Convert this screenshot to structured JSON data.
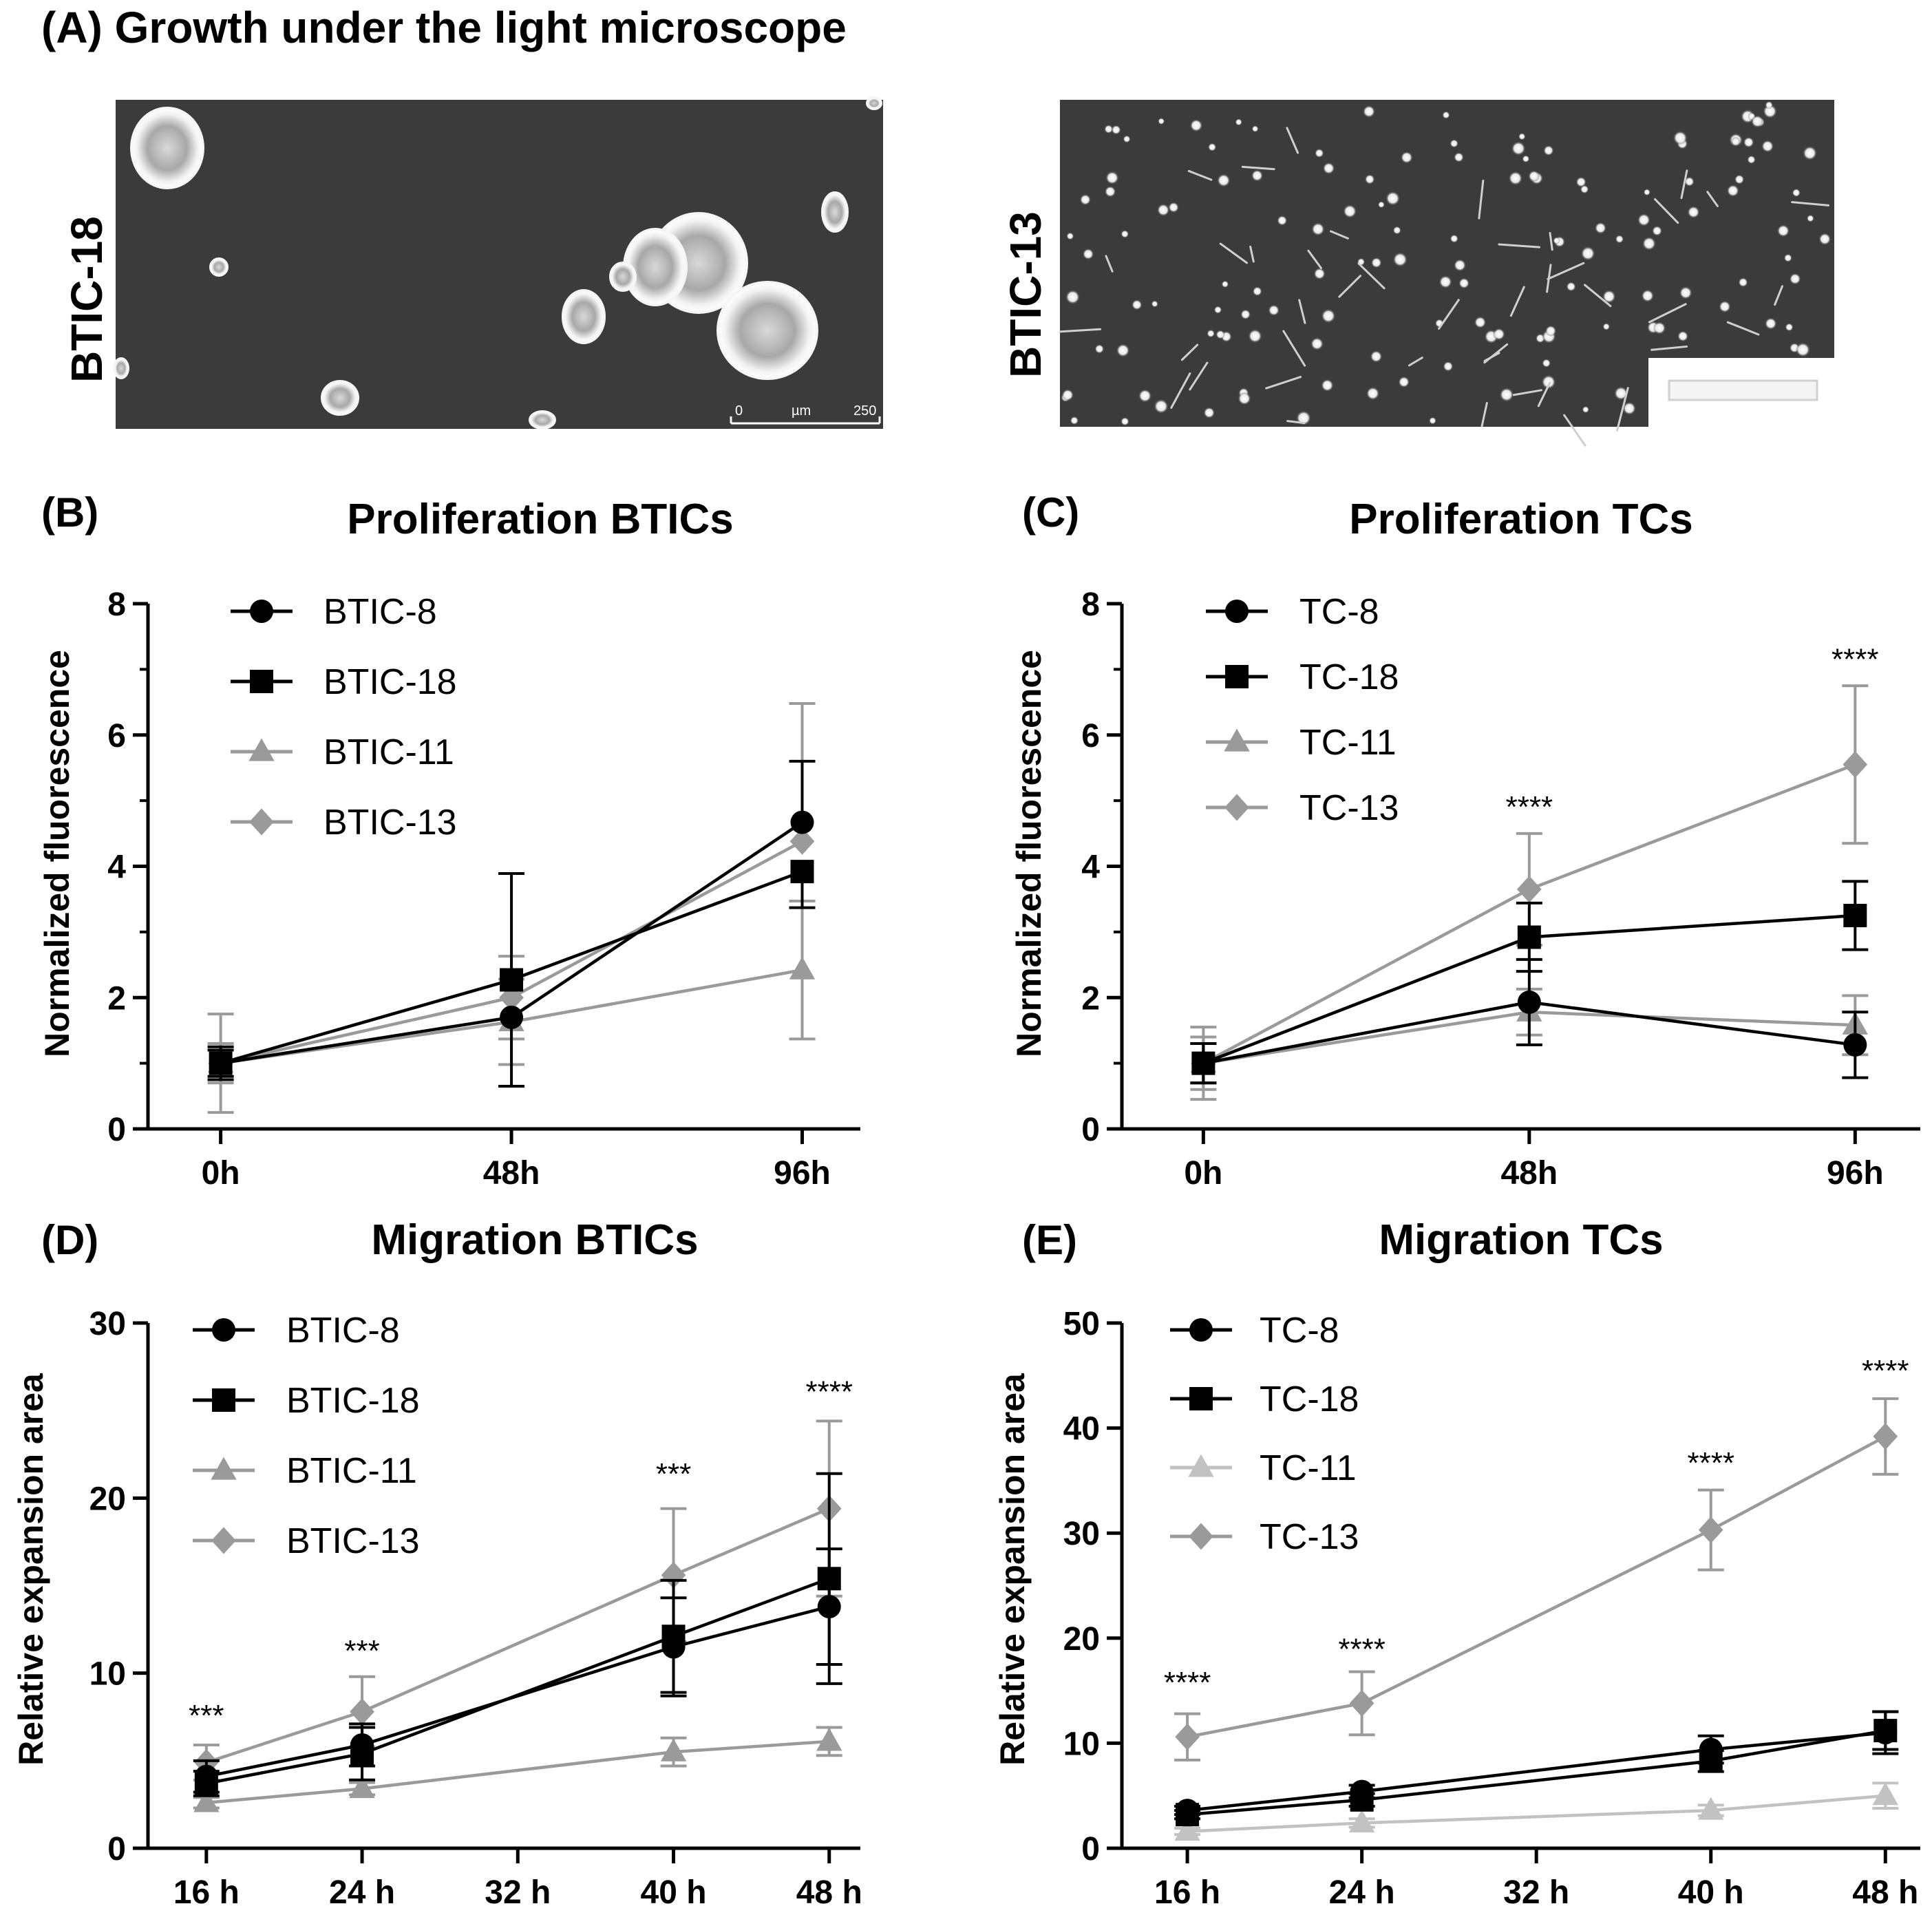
{
  "figure_title": "(A) Growth under  the light microscope",
  "panel_a": {
    "images": [
      {
        "label": "BTIC-18",
        "scalebar": {
          "start": "0",
          "unit": "µm",
          "end": "250"
        }
      },
      {
        "label": "BTIC-13"
      }
    ]
  },
  "colors": {
    "black": "#000000",
    "gray": "#9a9a9a",
    "light_gray": "#c2c2c2",
    "micro_bg": "#3b3b3b"
  },
  "chart_data": [
    {
      "id": "B",
      "panel_label": "(B)",
      "type": "line",
      "title": "Proliferation BTICs",
      "xlabel": "",
      "ylabel": "Normalized fluorescence",
      "x_is_categorical": true,
      "categories": [
        "0h",
        "48h",
        "96h"
      ],
      "xticks": [
        0,
        1,
        2
      ],
      "xlim": [
        -0.25,
        2.2
      ],
      "ylim": [
        0,
        8
      ],
      "yticks": [
        0,
        2,
        4,
        6,
        8
      ],
      "series": [
        {
          "name": "BTIC-8",
          "marker": "circle",
          "color": "#000000",
          "x": [
            0,
            1,
            2
          ],
          "values": [
            1.0,
            1.7,
            4.67
          ],
          "err": [
            0.25,
            1.05,
            0.93
          ],
          "err_dir": [
            "both",
            "down",
            "up"
          ]
        },
        {
          "name": "BTIC-18",
          "marker": "square",
          "color": "#000000",
          "x": [
            0,
            1,
            2
          ],
          "values": [
            1.0,
            2.27,
            3.92
          ],
          "err": [
            0.2,
            1.62,
            0.55
          ],
          "err_dir": [
            "both",
            "up",
            "down"
          ]
        },
        {
          "name": "BTIC-11",
          "marker": "triangle",
          "color": "#9a9a9a",
          "x": [
            0,
            1,
            2
          ],
          "values": [
            1.0,
            1.63,
            2.42
          ],
          "err": [
            0.3,
            0.65,
            1.05
          ],
          "err_dir": [
            "both",
            "both",
            "both"
          ]
        },
        {
          "name": "BTIC-13",
          "marker": "diamond",
          "color": "#9a9a9a",
          "x": [
            0,
            1,
            2
          ],
          "values": [
            1.0,
            2.0,
            4.38
          ],
          "err": [
            0.75,
            0.63,
            2.1
          ],
          "err_dir": [
            "both",
            "both",
            "up"
          ]
        }
      ],
      "annotations": []
    },
    {
      "id": "C",
      "panel_label": "(C)",
      "type": "line",
      "title": "Proliferation TCs",
      "xlabel": "",
      "ylabel": "Normalized fluorescence",
      "x_is_categorical": true,
      "categories": [
        "0h",
        "48h",
        "96h"
      ],
      "xticks": [
        0,
        1,
        2
      ],
      "xlim": [
        -0.25,
        2.2
      ],
      "ylim": [
        0,
        8
      ],
      "yticks": [
        0,
        2,
        4,
        6,
        8
      ],
      "series": [
        {
          "name": "TC-8",
          "marker": "circle",
          "color": "#000000",
          "x": [
            0,
            1,
            2
          ],
          "values": [
            1.0,
            1.93,
            1.28
          ],
          "err": [
            0.3,
            0.65,
            0.5
          ],
          "err_dir": [
            "both",
            "both",
            "both"
          ]
        },
        {
          "name": "TC-18",
          "marker": "square",
          "color": "#000000",
          "x": [
            0,
            1,
            2
          ],
          "values": [
            1.0,
            2.92,
            3.25
          ],
          "err": [
            0.3,
            0.52,
            0.52
          ],
          "err_dir": [
            "both",
            "both",
            "both"
          ]
        },
        {
          "name": "TC-11",
          "marker": "triangle",
          "color": "#9a9a9a",
          "x": [
            0,
            1,
            2
          ],
          "values": [
            1.0,
            1.78,
            1.58
          ],
          "err": [
            0.4,
            0.35,
            0.45
          ],
          "err_dir": [
            "both",
            "both",
            "both"
          ]
        },
        {
          "name": "TC-13",
          "marker": "diamond",
          "color": "#9a9a9a",
          "x": [
            0,
            1,
            2
          ],
          "values": [
            1.0,
            3.65,
            5.55
          ],
          "err": [
            0.55,
            0.85,
            1.2
          ],
          "err_dir": [
            "both",
            "both",
            "both"
          ]
        }
      ],
      "annotations": [
        {
          "text": "****",
          "x": 1,
          "y": 4.75
        },
        {
          "text": "****",
          "x": 2,
          "y": 7.0
        }
      ]
    },
    {
      "id": "D",
      "panel_label": "(D)",
      "type": "line",
      "title": "Migration BTICs",
      "xlabel": "",
      "ylabel": "Relative expansion area",
      "x_is_categorical": false,
      "x_ticklabels": [
        "16 h",
        "24 h",
        "32 h",
        "40 h",
        "48 h"
      ],
      "xticks": [
        16,
        24,
        32,
        40,
        48
      ],
      "xlim": [
        13,
        49.6
      ],
      "ylim": [
        0,
        30
      ],
      "yticks": [
        0,
        10,
        20,
        30
      ],
      "series": [
        {
          "name": "BTIC-8",
          "marker": "circle",
          "color": "#000000",
          "x": [
            16,
            24,
            40,
            48
          ],
          "values": [
            4.1,
            5.9,
            11.5,
            13.8
          ],
          "err": [
            0.9,
            1.2,
            2.8,
            3.3
          ],
          "err_dir": [
            "both",
            "both",
            "both",
            "both"
          ]
        },
        {
          "name": "BTIC-18",
          "marker": "square",
          "color": "#000000",
          "x": [
            16,
            24,
            40,
            48
          ],
          "values": [
            3.7,
            5.4,
            12.1,
            15.4
          ],
          "err": [
            0.7,
            1.5,
            3.2,
            6.0
          ],
          "err_dir": [
            "both",
            "both",
            "both",
            "both"
          ]
        },
        {
          "name": "BTIC-11",
          "marker": "triangle",
          "color": "#9a9a9a",
          "x": [
            16,
            24,
            40,
            48
          ],
          "values": [
            2.6,
            3.4,
            5.5,
            6.1
          ],
          "err": [
            0.3,
            0.35,
            0.8,
            0.8
          ],
          "err_dir": [
            "both",
            "both",
            "both",
            "both"
          ]
        },
        {
          "name": "BTIC-13",
          "marker": "diamond",
          "color": "#9a9a9a",
          "x": [
            16,
            24,
            40,
            48
          ],
          "values": [
            4.9,
            7.8,
            15.6,
            19.4
          ],
          "err": [
            1.0,
            2.0,
            3.8,
            5.0
          ],
          "err_dir": [
            "both",
            "both",
            "both",
            "both"
          ]
        }
      ],
      "annotations": [
        {
          "text": "***",
          "x": 16,
          "y": 7.0
        },
        {
          "text": "***",
          "x": 24,
          "y": 10.7
        },
        {
          "text": "***",
          "x": 40,
          "y": 20.8
        },
        {
          "text": "****",
          "x": 48,
          "y": 25.5
        }
      ]
    },
    {
      "id": "E",
      "panel_label": "(E)",
      "type": "line",
      "title": "Migration TCs",
      "xlabel": "",
      "ylabel": "Relative expansion area",
      "x_is_categorical": false,
      "x_ticklabels": [
        "16 h",
        "24 h",
        "32 h",
        "40 h",
        "48 h"
      ],
      "xticks": [
        16,
        24,
        32,
        40,
        48
      ],
      "xlim": [
        13,
        49.6
      ],
      "ylim": [
        0,
        50
      ],
      "yticks": [
        0,
        10,
        20,
        30,
        40,
        50
      ],
      "series": [
        {
          "name": "TC-8",
          "marker": "circle",
          "color": "#000000",
          "x": [
            16,
            24,
            40,
            48
          ],
          "values": [
            3.6,
            5.4,
            9.4,
            11.0
          ],
          "err": [
            0.4,
            0.6,
            1.3,
            2.0
          ],
          "err_dir": [
            "both",
            "both",
            "both",
            "both"
          ]
        },
        {
          "name": "TC-18",
          "marker": "square",
          "color": "#000000",
          "x": [
            16,
            24,
            40,
            48
          ],
          "values": [
            3.2,
            4.6,
            8.3,
            11.2
          ],
          "err": [
            0.4,
            0.6,
            1.0,
            1.8
          ],
          "err_dir": [
            "both",
            "both",
            "both",
            "both"
          ]
        },
        {
          "name": "TC-11",
          "marker": "triangle",
          "color": "#c2c2c2",
          "x": [
            16,
            24,
            40,
            48
          ],
          "values": [
            1.6,
            2.4,
            3.6,
            5.0
          ],
          "err": [
            0.3,
            0.4,
            0.5,
            1.2
          ],
          "err_dir": [
            "both",
            "both",
            "both",
            "both"
          ]
        },
        {
          "name": "TC-13",
          "marker": "diamond",
          "color": "#9a9a9a",
          "x": [
            16,
            24,
            40,
            48
          ],
          "values": [
            10.6,
            13.8,
            30.3,
            39.2
          ],
          "err": [
            2.2,
            3.0,
            3.8,
            3.6
          ],
          "err_dir": [
            "both",
            "both",
            "both",
            "both"
          ]
        }
      ],
      "annotations": [
        {
          "text": "****",
          "x": 16,
          "y": 14.8
        },
        {
          "text": "****",
          "x": 24,
          "y": 18.0
        },
        {
          "text": "****",
          "x": 40,
          "y": 35.7
        },
        {
          "text": "****",
          "x": 48,
          "y": 44.5
        }
      ]
    }
  ]
}
